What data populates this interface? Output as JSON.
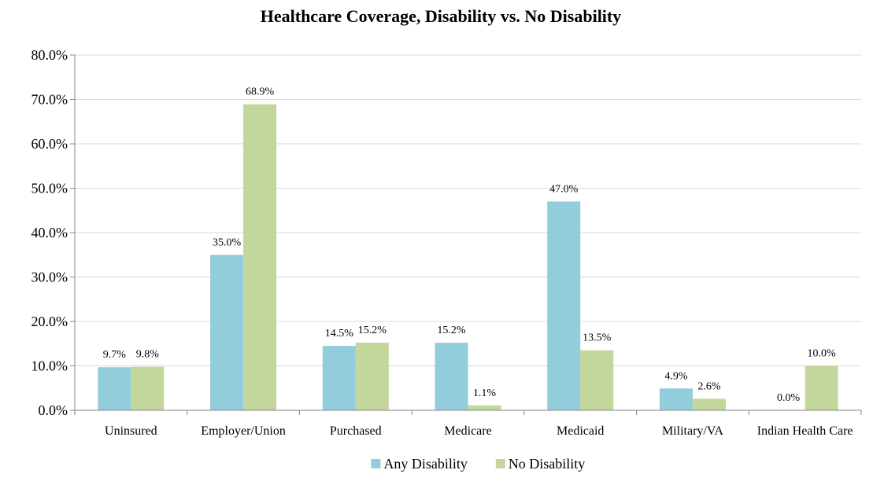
{
  "chart_data": {
    "type": "bar",
    "title": "Healthcare Coverage, Disability vs. No Disability",
    "xlabel": "",
    "ylabel": "",
    "ylim": [
      0,
      80
    ],
    "y_ticks": [
      "0.0%",
      "10.0%",
      "20.0%",
      "30.0%",
      "40.0%",
      "50.0%",
      "60.0%",
      "70.0%",
      "80.0%"
    ],
    "categories": [
      "Uninsured",
      "Employer/Union",
      "Purchased",
      "Medicare",
      "Medicaid",
      "Military/VA",
      "Indian Health Care"
    ],
    "series": [
      {
        "name": "Any Disability",
        "color": "#92CDDC",
        "values": [
          9.7,
          35.0,
          14.5,
          15.2,
          47.0,
          4.9,
          0.0
        ],
        "labels": [
          "9.7%",
          "35.0%",
          "14.5%",
          "15.2%",
          "47.0%",
          "4.9%",
          "0.0%"
        ]
      },
      {
        "name": "No Disability",
        "color": "#C3D69B",
        "values": [
          9.8,
          68.9,
          15.2,
          1.1,
          13.5,
          2.6,
          10.0
        ],
        "labels": [
          "9.8%",
          "68.9%",
          "15.2%",
          "1.1%",
          "13.5%",
          "2.6%",
          "10.0%"
        ]
      }
    ],
    "grid": true,
    "legend_position": "bottom"
  }
}
